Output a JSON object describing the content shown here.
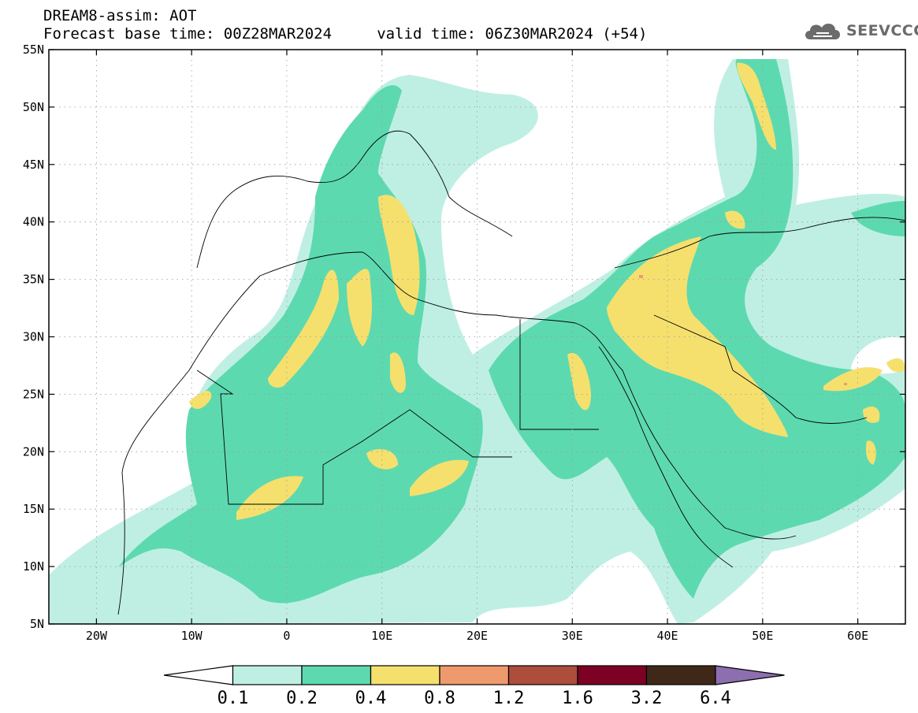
{
  "header": {
    "line1": "DREAM8-assim: AOT",
    "line2": "Forecast base time: 00Z28MAR2024     valid time: 06Z30MAR2024 (+54)"
  },
  "logo": {
    "icon": "cloud-icon",
    "text": "SEEVCCC"
  },
  "map": {
    "lon_range": [
      -25,
      65
    ],
    "lat_range": [
      5,
      55
    ],
    "lat_ticks": [
      "55N",
      "50N",
      "45N",
      "40N",
      "35N",
      "30N",
      "25N",
      "20N",
      "15N",
      "10N",
      "5N"
    ],
    "lon_ticks": [
      "20W",
      "10W",
      "0",
      "10E",
      "20E",
      "30E",
      "40E",
      "50E",
      "60E"
    ],
    "grid": "dotted"
  },
  "colorbar": {
    "colors": [
      "#ffffff",
      "#bfefe3",
      "#5dd9b0",
      "#f5e06e",
      "#ee9a6c",
      "#ad4d3c",
      "#7d0025",
      "#3f2818",
      "#8d6fb0"
    ],
    "labels": [
      "0.1",
      "0.2",
      "0.4",
      "0.8",
      "1.2",
      "1.6",
      "3.2",
      "6.4"
    ]
  }
}
